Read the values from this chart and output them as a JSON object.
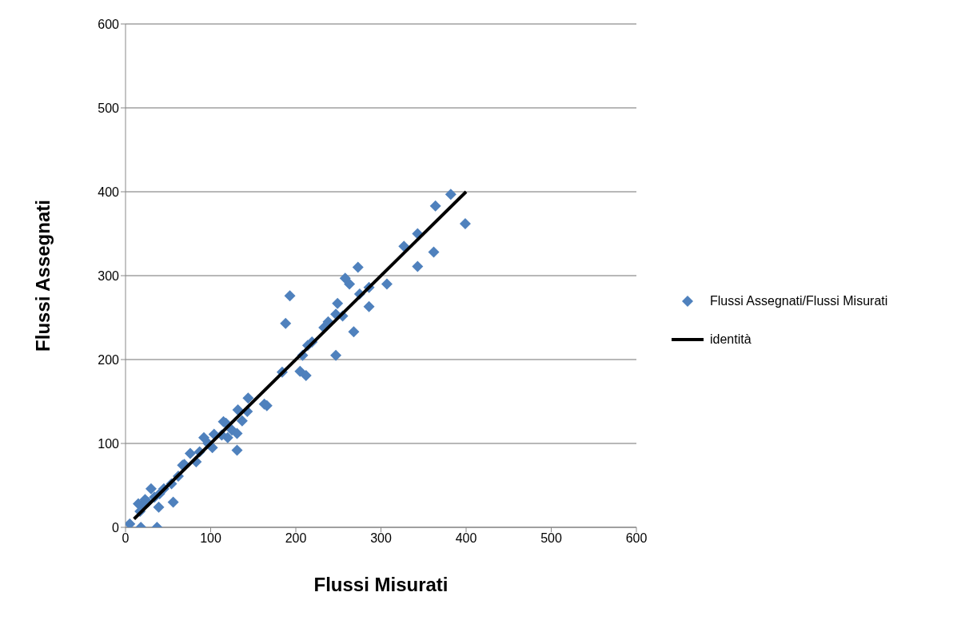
{
  "chart_data": {
    "type": "scatter",
    "xlabel": "Flussi Misurati",
    "ylabel": "Flussi Assegnati",
    "xlim": [
      0,
      600
    ],
    "ylim": [
      0,
      600
    ],
    "xticks": [
      0,
      100,
      200,
      300,
      400,
      500,
      600
    ],
    "yticks": [
      0,
      100,
      200,
      300,
      400,
      500,
      600
    ],
    "grid": "y",
    "legend": "right",
    "marker": "diamond",
    "series": [
      {
        "name": "Flussi Assegnati/Flussi Misurati",
        "color": "#4f81bd",
        "x": [
          5,
          18,
          37,
          15,
          17,
          20,
          26,
          30,
          34,
          39,
          45,
          40,
          56,
          54,
          62,
          67,
          76,
          83,
          87,
          92,
          97,
          102,
          104,
          118,
          120,
          125,
          131,
          131,
          132,
          137,
          144,
          143,
          166,
          184,
          188,
          193,
          205,
          212,
          208,
          214,
          219,
          233,
          238,
          247,
          249,
          255,
          247,
          258,
          263,
          268,
          275,
          273,
          286,
          286,
          307,
          327,
          343,
          343,
          362,
          364,
          382,
          399,
          23,
          69,
          113,
          115,
          163
        ],
        "values": [
          4,
          0,
          0,
          28,
          19,
          27,
          30,
          46,
          36,
          24,
          46,
          40,
          30,
          52,
          61,
          74,
          88,
          78,
          90,
          107,
          100,
          95,
          111,
          124,
          107,
          116,
          112,
          92,
          140,
          127,
          154,
          138,
          145,
          185,
          243,
          276,
          186,
          181,
          205,
          217,
          221,
          238,
          245,
          254,
          267,
          252,
          205,
          297,
          290,
          233,
          278,
          310,
          286,
          263,
          290,
          335,
          350,
          311,
          328,
          383,
          397,
          362,
          33,
          75,
          110,
          126,
          147
        ]
      },
      {
        "name": "identità",
        "type": "line",
        "color": "#000000",
        "marker": "none",
        "x": [
          10,
          400
        ],
        "values": [
          10,
          400
        ]
      }
    ]
  }
}
